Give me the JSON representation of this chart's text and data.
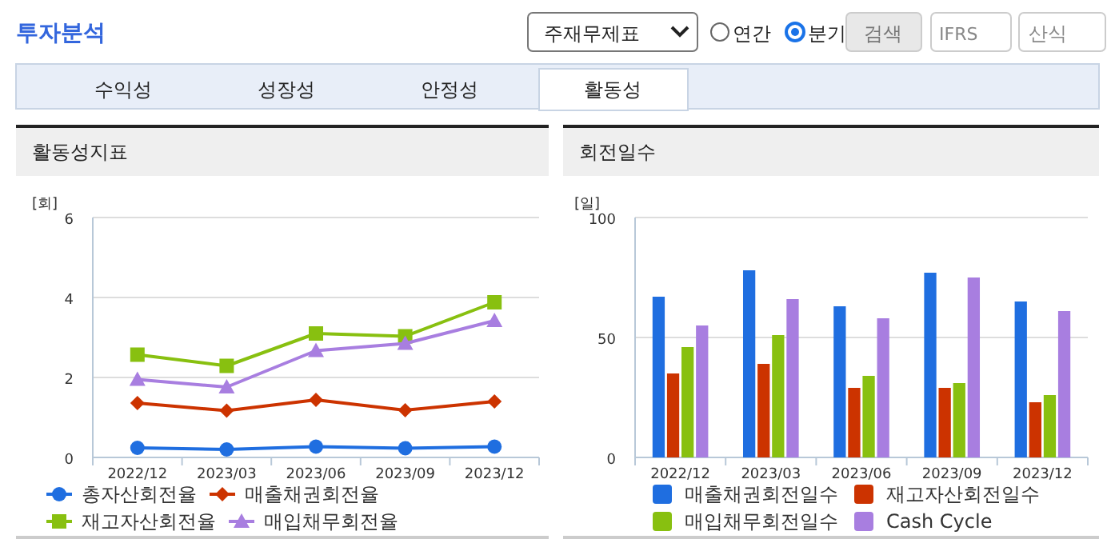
{
  "chart_data": [
    {
      "type": "other",
      "title": "투자분석",
      "annotations": [
        "주재무제표",
        "연간",
        "분기",
        "검색",
        "IFRS",
        "산식",
        "수익성",
        "성장성",
        "안정성",
        "활동성"
      ]
    },
    {
      "type": "line",
      "title": "활동성지표",
      "ylabel": "[회]",
      "categories": [
        "2022/12",
        "2023/03",
        "2023/06",
        "2023/09",
        "2023/12"
      ],
      "ylim": [
        0,
        6
      ],
      "yticks": [
        0,
        2,
        4,
        6
      ],
      "grid": "y",
      "legend": "bottom",
      "line_style": "solid",
      "series": [
        {
          "name": "총자산회전율",
          "color": "#1f6ee0",
          "marker": "circle",
          "values": [
            0.24,
            0.2,
            0.27,
            0.23,
            0.27
          ]
        },
        {
          "name": "매출채권회전율",
          "color": "#cc3300",
          "marker": "diamond",
          "values": [
            1.36,
            1.17,
            1.44,
            1.18,
            1.4
          ]
        },
        {
          "name": "재고자산회전율",
          "color": "#88c010",
          "marker": "square",
          "values": [
            2.57,
            2.29,
            3.1,
            3.03,
            3.88
          ]
        },
        {
          "name": "매입채무회전율",
          "color": "#a87ee0",
          "marker": "triangle",
          "values": [
            1.95,
            1.76,
            2.67,
            2.85,
            3.42
          ]
        }
      ]
    },
    {
      "type": "bar",
      "title": "회전일수",
      "ylabel": "[일]",
      "categories": [
        "2022/12",
        "2023/03",
        "2023/06",
        "2023/09",
        "2023/12"
      ],
      "ylim": [
        0,
        100
      ],
      "yticks": [
        0,
        50,
        100
      ],
      "grid": "y",
      "legend": "bottom",
      "series": [
        {
          "name": "매출채권회전일수",
          "color": "#1f6ee0",
          "values": [
            67,
            78,
            63,
            77,
            65
          ]
        },
        {
          "name": "재고자산회전일수",
          "color": "#cc3300",
          "values": [
            35,
            39,
            29,
            29,
            23
          ]
        },
        {
          "name": "매입채무회전일수",
          "color": "#88c010",
          "values": [
            46,
            51,
            34,
            31,
            26
          ]
        },
        {
          "name": "Cash Cycle",
          "color": "#a87ee0",
          "values": [
            55,
            66,
            58,
            75,
            61
          ]
        }
      ]
    }
  ]
}
